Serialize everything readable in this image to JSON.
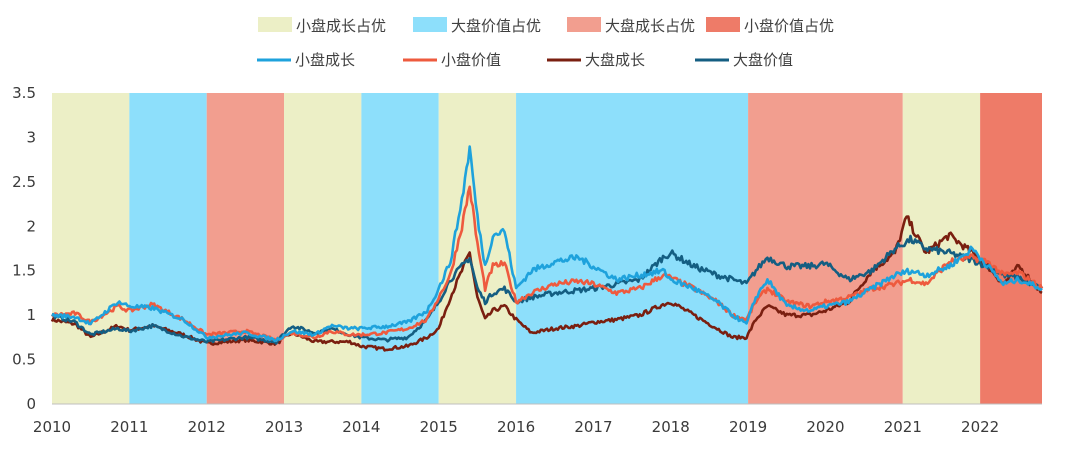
{
  "chart_data": {
    "type": "line",
    "xlim": [
      2010,
      2022.8
    ],
    "ylim": [
      0,
      3.5
    ],
    "x_ticks": [
      "2010",
      "2011",
      "2012",
      "2013",
      "2014",
      "2015",
      "2016",
      "2017",
      "2018",
      "2019",
      "2020",
      "2021",
      "2022"
    ],
    "y_ticks": [
      "0",
      "0.5",
      "1",
      "1.5",
      "2",
      "2.5",
      "3",
      "3.5"
    ],
    "grid": false,
    "legend_position": "top",
    "regimes": [
      {
        "name": "小盘成长占优",
        "color": "#ecefc6"
      },
      {
        "name": "大盘价值占优",
        "color": "#8ddffb"
      },
      {
        "name": "大盘成长占优",
        "color": "#f29e8f"
      },
      {
        "name": "小盘价值占优",
        "color": "#ee7b68"
      }
    ],
    "regime_periods": [
      {
        "start": 2010.0,
        "end": 2011.0,
        "regime": 0
      },
      {
        "start": 2011.0,
        "end": 2012.0,
        "regime": 1
      },
      {
        "start": 2012.0,
        "end": 2013.0,
        "regime": 2
      },
      {
        "start": 2013.0,
        "end": 2014.0,
        "regime": 0
      },
      {
        "start": 2014.0,
        "end": 2015.0,
        "regime": 1
      },
      {
        "start": 2015.0,
        "end": 2016.0,
        "regime": 0
      },
      {
        "start": 2016.0,
        "end": 2019.0,
        "regime": 1
      },
      {
        "start": 2019.0,
        "end": 2021.0,
        "regime": 2
      },
      {
        "start": 2021.0,
        "end": 2022.0,
        "regime": 0
      },
      {
        "start": 2022.0,
        "end": 2022.8,
        "regime": 3
      }
    ],
    "series": [
      {
        "name": "小盘成长",
        "color": "#1ea2dc",
        "points": [
          [
            2010,
            1.0
          ],
          [
            2010.3,
            0.98
          ],
          [
            2010.5,
            0.9
          ],
          [
            2010.85,
            1.15
          ],
          [
            2011.0,
            1.1
          ],
          [
            2011.3,
            1.08
          ],
          [
            2011.7,
            0.95
          ],
          [
            2012.0,
            0.75
          ],
          [
            2012.5,
            0.8
          ],
          [
            2012.9,
            0.72
          ],
          [
            2013.1,
            0.82
          ],
          [
            2013.4,
            0.78
          ],
          [
            2013.6,
            0.88
          ],
          [
            2013.85,
            0.85
          ],
          [
            2014.0,
            0.85
          ],
          [
            2014.3,
            0.87
          ],
          [
            2014.6,
            0.92
          ],
          [
            2014.85,
            1.05
          ],
          [
            2015.0,
            1.3
          ],
          [
            2015.15,
            1.6
          ],
          [
            2015.3,
            2.3
          ],
          [
            2015.4,
            2.88
          ],
          [
            2015.5,
            2.1
          ],
          [
            2015.6,
            1.55
          ],
          [
            2015.7,
            1.9
          ],
          [
            2015.85,
            1.95
          ],
          [
            2016.0,
            1.3
          ],
          [
            2016.2,
            1.5
          ],
          [
            2016.5,
            1.6
          ],
          [
            2016.8,
            1.65
          ],
          [
            2017.0,
            1.55
          ],
          [
            2017.3,
            1.4
          ],
          [
            2017.6,
            1.45
          ],
          [
            2017.9,
            1.5
          ],
          [
            2018.0,
            1.4
          ],
          [
            2018.3,
            1.3
          ],
          [
            2018.6,
            1.15
          ],
          [
            2018.8,
            1.0
          ],
          [
            2018.98,
            0.9
          ],
          [
            2019.1,
            1.2
          ],
          [
            2019.25,
            1.4
          ],
          [
            2019.5,
            1.1
          ],
          [
            2019.8,
            1.05
          ],
          [
            2020.0,
            1.1
          ],
          [
            2020.3,
            1.15
          ],
          [
            2020.6,
            1.3
          ],
          [
            2020.9,
            1.45
          ],
          [
            2021.1,
            1.5
          ],
          [
            2021.3,
            1.45
          ],
          [
            2021.6,
            1.55
          ],
          [
            2021.9,
            1.75
          ],
          [
            2022.1,
            1.55
          ],
          [
            2022.3,
            1.35
          ],
          [
            2022.5,
            1.4
          ],
          [
            2022.8,
            1.3
          ]
        ]
      },
      {
        "name": "小盘价值",
        "color": "#ee5a3e",
        "points": [
          [
            2010,
            1.0
          ],
          [
            2010.3,
            1.02
          ],
          [
            2010.5,
            0.92
          ],
          [
            2010.85,
            1.1
          ],
          [
            2011.0,
            1.05
          ],
          [
            2011.3,
            1.12
          ],
          [
            2011.7,
            0.95
          ],
          [
            2012.0,
            0.78
          ],
          [
            2012.5,
            0.82
          ],
          [
            2012.9,
            0.72
          ],
          [
            2013.1,
            0.8
          ],
          [
            2013.4,
            0.75
          ],
          [
            2013.6,
            0.82
          ],
          [
            2013.85,
            0.78
          ],
          [
            2014.0,
            0.78
          ],
          [
            2014.3,
            0.8
          ],
          [
            2014.6,
            0.85
          ],
          [
            2014.85,
            0.95
          ],
          [
            2015.0,
            1.2
          ],
          [
            2015.15,
            1.45
          ],
          [
            2015.3,
            2.0
          ],
          [
            2015.4,
            2.45
          ],
          [
            2015.5,
            1.8
          ],
          [
            2015.6,
            1.3
          ],
          [
            2015.7,
            1.55
          ],
          [
            2015.85,
            1.58
          ],
          [
            2016.0,
            1.15
          ],
          [
            2016.2,
            1.25
          ],
          [
            2016.5,
            1.35
          ],
          [
            2016.8,
            1.38
          ],
          [
            2017.0,
            1.35
          ],
          [
            2017.3,
            1.25
          ],
          [
            2017.6,
            1.3
          ],
          [
            2017.9,
            1.45
          ],
          [
            2018.0,
            1.42
          ],
          [
            2018.3,
            1.3
          ],
          [
            2018.6,
            1.15
          ],
          [
            2018.8,
            1.0
          ],
          [
            2018.98,
            0.95
          ],
          [
            2019.1,
            1.15
          ],
          [
            2019.25,
            1.3
          ],
          [
            2019.5,
            1.15
          ],
          [
            2019.8,
            1.1
          ],
          [
            2020.0,
            1.15
          ],
          [
            2020.3,
            1.2
          ],
          [
            2020.6,
            1.3
          ],
          [
            2020.9,
            1.35
          ],
          [
            2021.1,
            1.4
          ],
          [
            2021.3,
            1.35
          ],
          [
            2021.6,
            1.6
          ],
          [
            2021.9,
            1.65
          ],
          [
            2022.1,
            1.6
          ],
          [
            2022.3,
            1.45
          ],
          [
            2022.5,
            1.48
          ],
          [
            2022.8,
            1.3
          ]
        ]
      },
      {
        "name": "大盘成长",
        "color": "#7a1f10",
        "points": [
          [
            2010,
            0.95
          ],
          [
            2010.3,
            0.9
          ],
          [
            2010.5,
            0.75
          ],
          [
            2010.85,
            0.88
          ],
          [
            2011.0,
            0.83
          ],
          [
            2011.3,
            0.88
          ],
          [
            2011.7,
            0.78
          ],
          [
            2012.0,
            0.68
          ],
          [
            2012.5,
            0.72
          ],
          [
            2012.9,
            0.68
          ],
          [
            2013.1,
            0.8
          ],
          [
            2013.4,
            0.7
          ],
          [
            2013.6,
            0.7
          ],
          [
            2013.85,
            0.7
          ],
          [
            2014.0,
            0.65
          ],
          [
            2014.3,
            0.62
          ],
          [
            2014.6,
            0.65
          ],
          [
            2014.85,
            0.75
          ],
          [
            2015.0,
            0.85
          ],
          [
            2015.15,
            1.2
          ],
          [
            2015.3,
            1.5
          ],
          [
            2015.4,
            1.7
          ],
          [
            2015.5,
            1.2
          ],
          [
            2015.6,
            0.95
          ],
          [
            2015.7,
            1.05
          ],
          [
            2015.85,
            1.1
          ],
          [
            2016.0,
            0.95
          ],
          [
            2016.2,
            0.8
          ],
          [
            2016.5,
            0.85
          ],
          [
            2016.8,
            0.88
          ],
          [
            2017.0,
            0.92
          ],
          [
            2017.3,
            0.95
          ],
          [
            2017.6,
            1.0
          ],
          [
            2017.9,
            1.12
          ],
          [
            2018.0,
            1.15
          ],
          [
            2018.3,
            1.0
          ],
          [
            2018.6,
            0.85
          ],
          [
            2018.8,
            0.75
          ],
          [
            2018.98,
            0.75
          ],
          [
            2019.1,
            0.95
          ],
          [
            2019.25,
            1.1
          ],
          [
            2019.5,
            1.0
          ],
          [
            2019.8,
            1.0
          ],
          [
            2020.0,
            1.05
          ],
          [
            2020.3,
            1.15
          ],
          [
            2020.6,
            1.5
          ],
          [
            2020.9,
            1.7
          ],
          [
            2021.05,
            2.1
          ],
          [
            2021.3,
            1.7
          ],
          [
            2021.6,
            1.9
          ],
          [
            2021.9,
            1.7
          ],
          [
            2022.1,
            1.55
          ],
          [
            2022.3,
            1.35
          ],
          [
            2022.5,
            1.55
          ],
          [
            2022.8,
            1.25
          ]
        ]
      },
      {
        "name": "大盘价值",
        "color": "#145e82",
        "points": [
          [
            2010,
            1.0
          ],
          [
            2010.3,
            0.92
          ],
          [
            2010.5,
            0.78
          ],
          [
            2010.85,
            0.85
          ],
          [
            2011.0,
            0.82
          ],
          [
            2011.3,
            0.88
          ],
          [
            2011.7,
            0.76
          ],
          [
            2012.0,
            0.7
          ],
          [
            2012.5,
            0.75
          ],
          [
            2012.9,
            0.7
          ],
          [
            2013.1,
            0.88
          ],
          [
            2013.4,
            0.8
          ],
          [
            2013.6,
            0.85
          ],
          [
            2013.85,
            0.78
          ],
          [
            2014.0,
            0.75
          ],
          [
            2014.3,
            0.72
          ],
          [
            2014.6,
            0.75
          ],
          [
            2014.85,
            0.95
          ],
          [
            2015.0,
            1.15
          ],
          [
            2015.15,
            1.4
          ],
          [
            2015.3,
            1.55
          ],
          [
            2015.4,
            1.65
          ],
          [
            2015.5,
            1.3
          ],
          [
            2015.6,
            1.15
          ],
          [
            2015.7,
            1.25
          ],
          [
            2015.85,
            1.3
          ],
          [
            2016.0,
            1.15
          ],
          [
            2016.2,
            1.2
          ],
          [
            2016.5,
            1.25
          ],
          [
            2016.8,
            1.28
          ],
          [
            2017.0,
            1.3
          ],
          [
            2017.3,
            1.35
          ],
          [
            2017.6,
            1.4
          ],
          [
            2017.9,
            1.65
          ],
          [
            2018.0,
            1.7
          ],
          [
            2018.3,
            1.55
          ],
          [
            2018.6,
            1.45
          ],
          [
            2018.8,
            1.4
          ],
          [
            2018.98,
            1.35
          ],
          [
            2019.1,
            1.5
          ],
          [
            2019.25,
            1.65
          ],
          [
            2019.5,
            1.55
          ],
          [
            2019.8,
            1.55
          ],
          [
            2020.0,
            1.58
          ],
          [
            2020.3,
            1.4
          ],
          [
            2020.6,
            1.5
          ],
          [
            2020.9,
            1.75
          ],
          [
            2021.1,
            1.85
          ],
          [
            2021.3,
            1.75
          ],
          [
            2021.6,
            1.7
          ],
          [
            2021.9,
            1.62
          ],
          [
            2022.1,
            1.55
          ],
          [
            2022.3,
            1.45
          ],
          [
            2022.5,
            1.42
          ],
          [
            2022.8,
            1.3
          ]
        ]
      }
    ]
  }
}
